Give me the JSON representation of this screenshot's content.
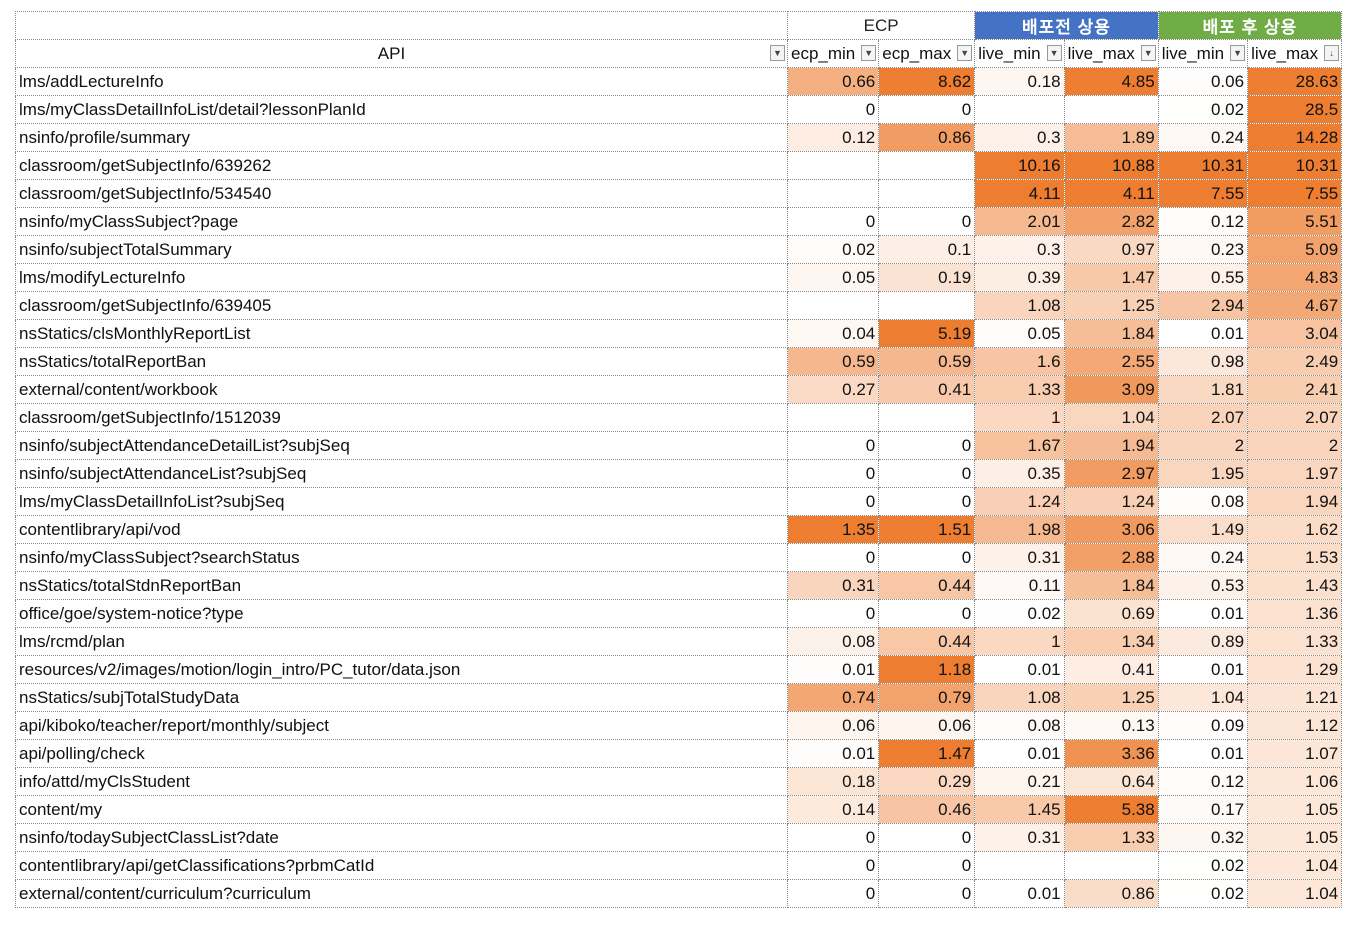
{
  "sheet": {
    "groups": {
      "ecp": "ECP",
      "pre": "배포전 상용",
      "post": "배포 후 상용"
    },
    "columns": [
      "API",
      "ecp_min",
      "ecp_max",
      "live_min",
      "live_max",
      "live_min",
      "live_max"
    ],
    "filter_icon": "dropdown-arrow-icon",
    "sort_icon": "sort-descending-icon",
    "heat_colors": {
      "low": "#ffffff",
      "high": "#ed7d31"
    },
    "rows": [
      [
        "lms/addLectureInfo",
        "0.66",
        "8.62",
        "0.18",
        "4.85",
        "0.06",
        "28.63"
      ],
      [
        "lms/myClassDetailInfoList/detail?lessonPlanId",
        "0",
        "0",
        "",
        "",
        "0.02",
        "28.5"
      ],
      [
        "nsinfo/profile/summary",
        "0.12",
        "0.86",
        "0.3",
        "1.89",
        "0.24",
        "14.28"
      ],
      [
        "classroom/getSubjectInfo/639262",
        "",
        "",
        "10.16",
        "10.88",
        "10.31",
        "10.31"
      ],
      [
        "classroom/getSubjectInfo/534540",
        "",
        "",
        "4.11",
        "4.11",
        "7.55",
        "7.55"
      ],
      [
        "nsinfo/myClassSubject?page",
        "0",
        "0",
        "2.01",
        "2.82",
        "0.12",
        "5.51"
      ],
      [
        "nsinfo/subjectTotalSummary",
        "0.02",
        "0.1",
        "0.3",
        "0.97",
        "0.23",
        "5.09"
      ],
      [
        "lms/modifyLectureInfo",
        "0.05",
        "0.19",
        "0.39",
        "1.47",
        "0.55",
        "4.83"
      ],
      [
        "classroom/getSubjectInfo/639405",
        "",
        "",
        "1.08",
        "1.25",
        "2.94",
        "4.67"
      ],
      [
        "nsStatics/clsMonthlyReportList",
        "0.04",
        "5.19",
        "0.05",
        "1.84",
        "0.01",
        "3.04"
      ],
      [
        "nsStatics/totalReportBan",
        "0.59",
        "0.59",
        "1.6",
        "2.55",
        "0.98",
        "2.49"
      ],
      [
        "external/content/workbook",
        "0.27",
        "0.41",
        "1.33",
        "3.09",
        "1.81",
        "2.41"
      ],
      [
        "classroom/getSubjectInfo/1512039",
        "",
        "",
        "1",
        "1.04",
        "2.07",
        "2.07"
      ],
      [
        "nsinfo/subjectAttendanceDetailList?subjSeq",
        "0",
        "0",
        "1.67",
        "1.94",
        "2",
        "2"
      ],
      [
        "nsinfo/subjectAttendanceList?subjSeq",
        "0",
        "0",
        "0.35",
        "2.97",
        "1.95",
        "1.97"
      ],
      [
        "lms/myClassDetailInfoList?subjSeq",
        "0",
        "0",
        "1.24",
        "1.24",
        "0.08",
        "1.94"
      ],
      [
        "contentlibrary/api/vod",
        "1.35",
        "1.51",
        "1.98",
        "3.06",
        "1.49",
        "1.62"
      ],
      [
        "nsinfo/myClassSubject?searchStatus",
        "0",
        "0",
        "0.31",
        "2.88",
        "0.24",
        "1.53"
      ],
      [
        "nsStatics/totalStdnReportBan",
        "0.31",
        "0.44",
        "0.11",
        "1.84",
        "0.53",
        "1.43"
      ],
      [
        "office/goe/system-notice?type",
        "0",
        "0",
        "0.02",
        "0.69",
        "0.01",
        "1.36"
      ],
      [
        "lms/rcmd/plan",
        "0.08",
        "0.44",
        "1",
        "1.34",
        "0.89",
        "1.33"
      ],
      [
        "resources/v2/images/motion/login_intro/PC_tutor/data.json",
        "0.01",
        "1.18",
        "0.01",
        "0.41",
        "0.01",
        "1.29"
      ],
      [
        "nsStatics/subjTotalStudyData",
        "0.74",
        "0.79",
        "1.08",
        "1.25",
        "1.04",
        "1.21"
      ],
      [
        "api/kiboko/teacher/report/monthly/subject",
        "0.06",
        "0.06",
        "0.08",
        "0.13",
        "0.09",
        "1.12"
      ],
      [
        "api/polling/check",
        "0.01",
        "1.47",
        "0.01",
        "3.36",
        "0.01",
        "1.07"
      ],
      [
        "info/attd/myClsStudent",
        "0.18",
        "0.29",
        "0.21",
        "0.64",
        "0.12",
        "1.06"
      ],
      [
        "content/my",
        "0.14",
        "0.46",
        "1.45",
        "5.38",
        "0.17",
        "1.05"
      ],
      [
        "nsinfo/todaySubjectClassList?date",
        "0",
        "0",
        "0.31",
        "1.33",
        "0.32",
        "1.05"
      ],
      [
        "contentlibrary/api/getClassifications?prbmCatId",
        "0",
        "0",
        "",
        "",
        "0.02",
        "1.04"
      ],
      [
        "external/content/curriculum?curriculum",
        "0",
        "0",
        "0.01",
        "0.86",
        "0.02",
        "1.04"
      ]
    ]
  }
}
